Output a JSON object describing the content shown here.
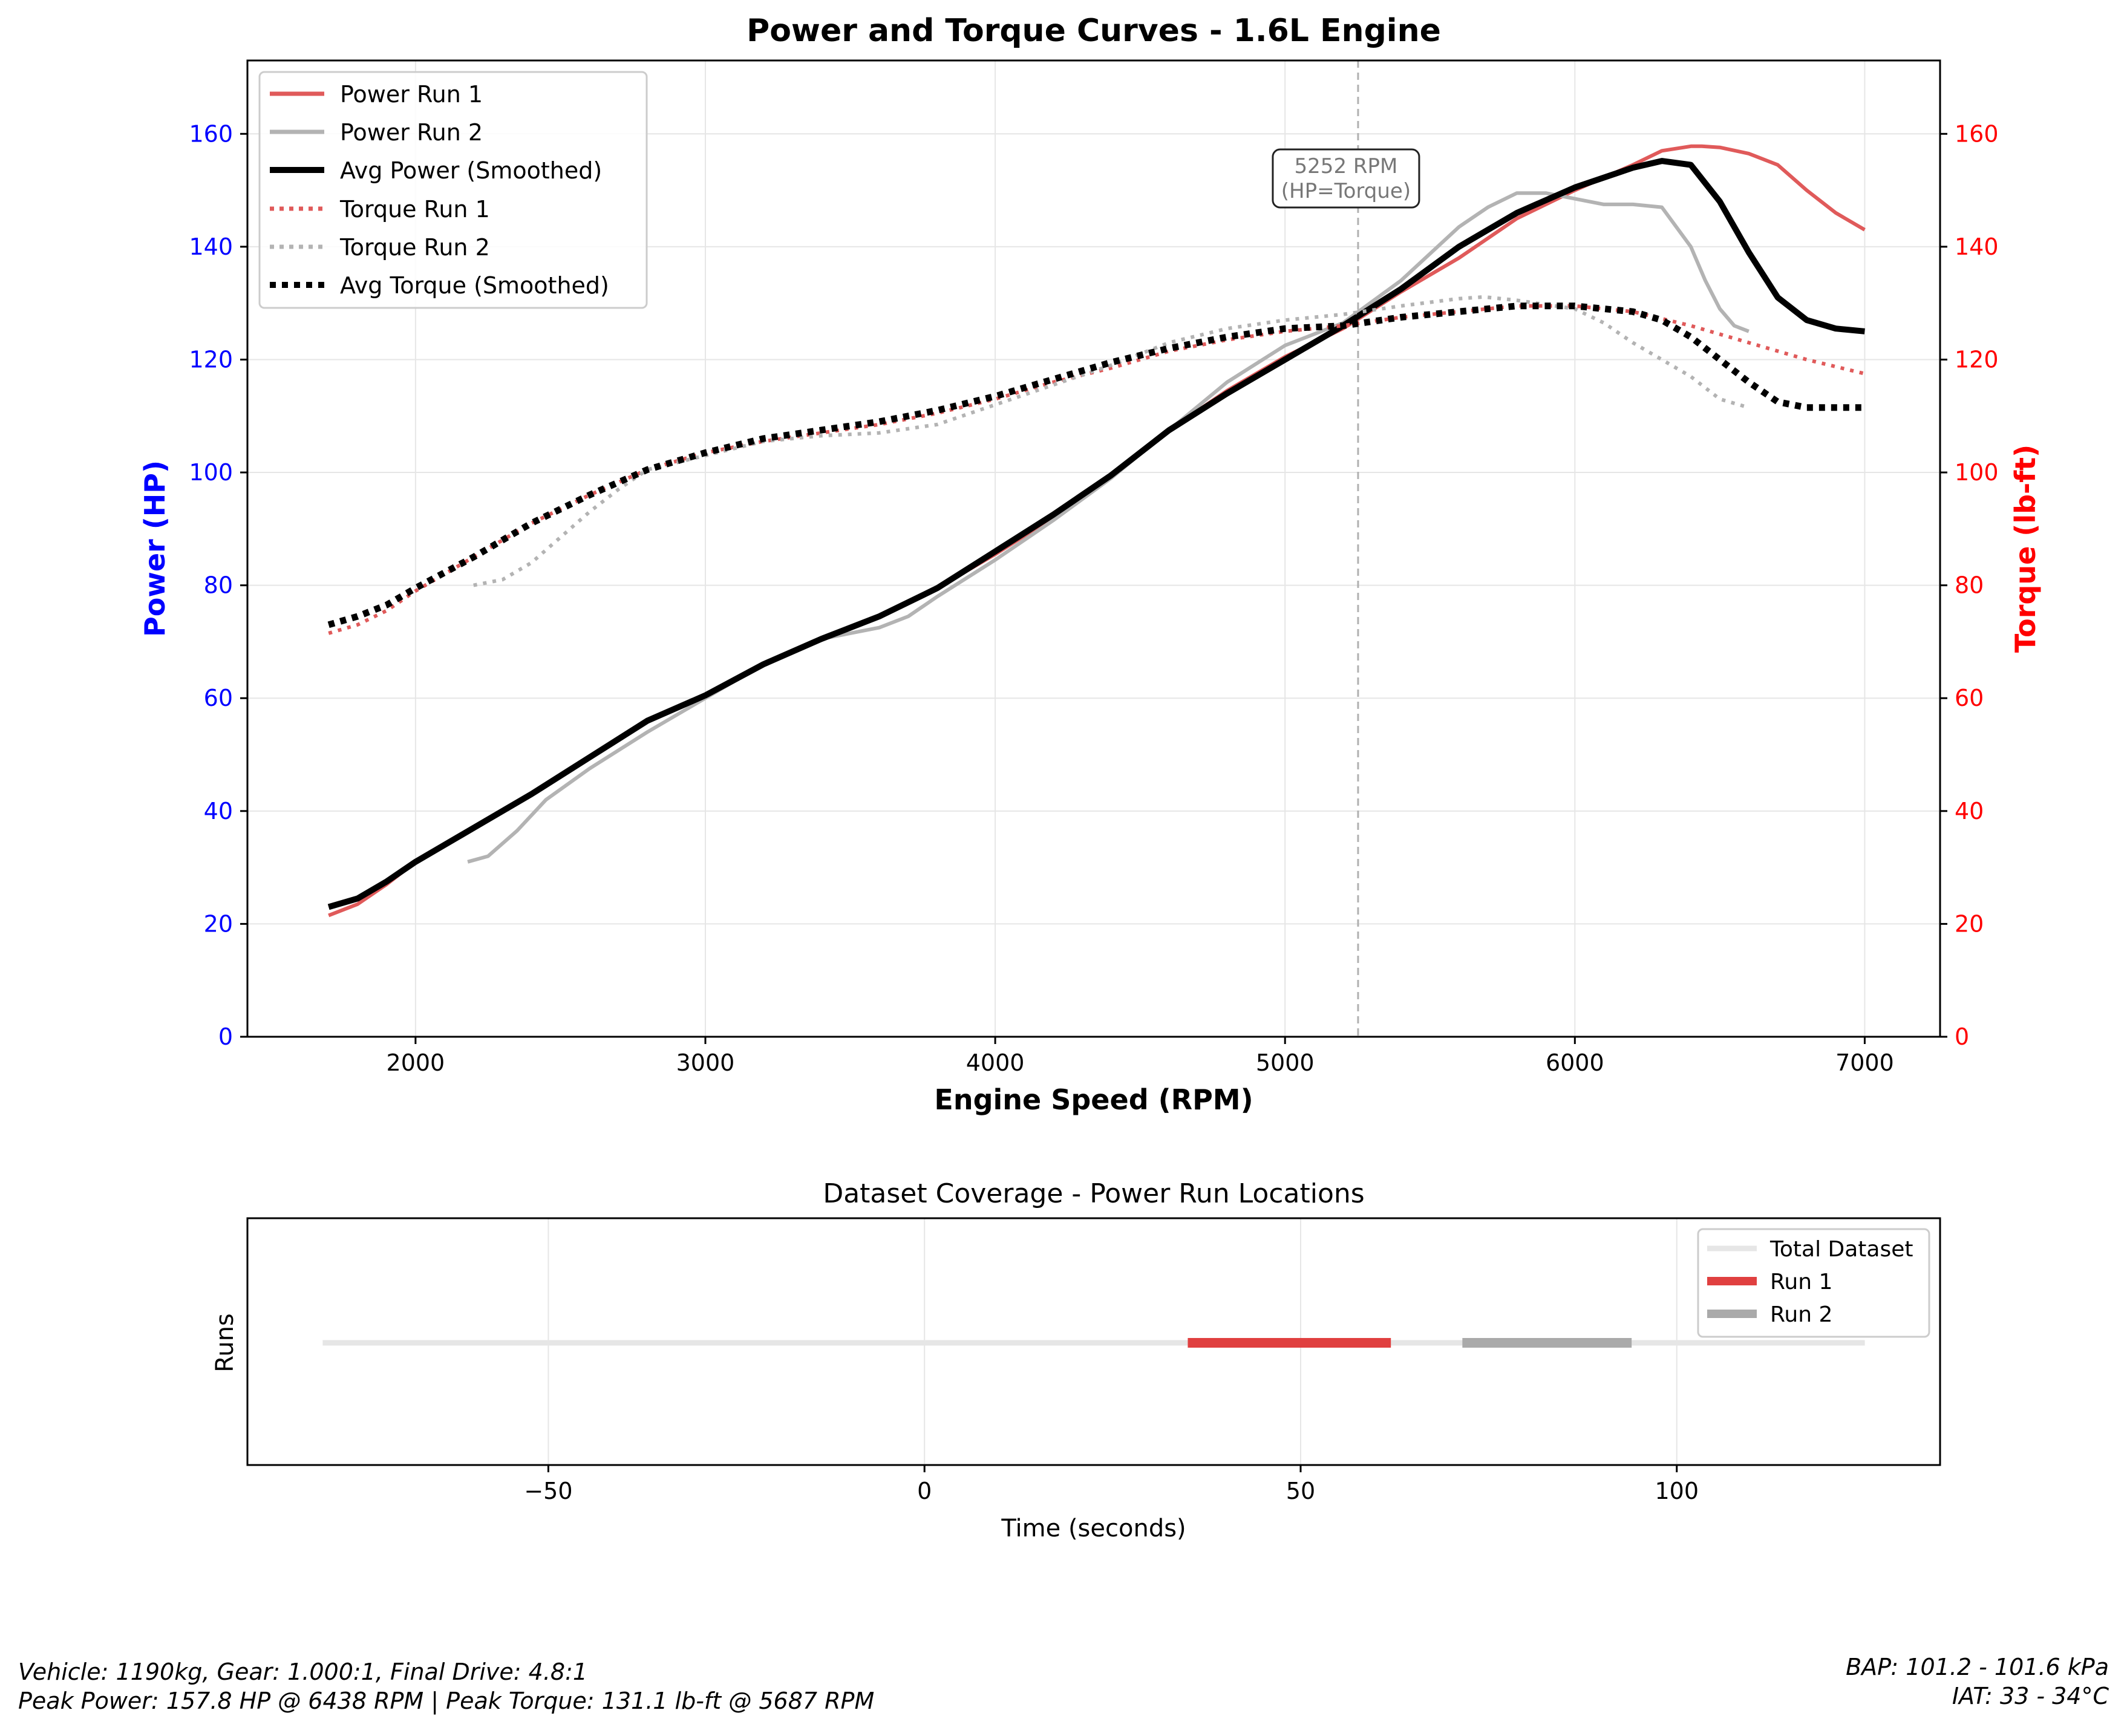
{
  "chart_data": [
    {
      "type": "line",
      "title": "Power and Torque Curves - 1.6L Engine",
      "xlabel": "Engine Speed (RPM)",
      "ylabel": "Power (HP)",
      "ylabel_right": "Torque (lb-ft)",
      "xlim": [
        1420,
        7260
      ],
      "ylim": [
        0,
        173
      ],
      "ylim_right": [
        0,
        173
      ],
      "xticks": [
        2000,
        3000,
        4000,
        5000,
        6000,
        7000
      ],
      "yticks": [
        0,
        20,
        40,
        60,
        80,
        100,
        120,
        140,
        160
      ],
      "grid": true,
      "legend_position": "top-left",
      "colors": {
        "power_run1": "#e05a5a",
        "power_run2": "#b3b3b3",
        "avg": "#000000",
        "left_axis": "#0000ff",
        "right_axis": "#ff0000"
      },
      "annotation": {
        "x": 5252,
        "text_line1": "5252 RPM",
        "text_line2": "(HP=Torque)"
      },
      "series": [
        {
          "name": "Power Run 1",
          "axis": "left",
          "style": "solid",
          "x": [
            1700,
            1800,
            1900,
            2000,
            2200,
            2400,
            2600,
            2800,
            3000,
            3200,
            3400,
            3600,
            3800,
            4000,
            4200,
            4400,
            4600,
            4800,
            5000,
            5200,
            5400,
            5600,
            5800,
            6000,
            6200,
            6300,
            6400,
            6438,
            6500,
            6600,
            6700,
            6800,
            6900,
            7000
          ],
          "y": [
            21.5,
            23.5,
            27,
            31,
            37,
            43,
            49.5,
            56,
            60.5,
            66,
            70.5,
            74.5,
            79.5,
            85.5,
            92,
            99.5,
            107.5,
            114.5,
            120.5,
            125.5,
            132,
            138,
            145,
            150,
            154.5,
            157,
            157.8,
            157.8,
            157.6,
            156.5,
            154.5,
            150,
            146,
            143
          ]
        },
        {
          "name": "Power Run 2",
          "axis": "left",
          "style": "solid",
          "x": [
            2180,
            2250,
            2350,
            2450,
            2600,
            2800,
            3000,
            3200,
            3400,
            3600,
            3700,
            3800,
            4000,
            4200,
            4400,
            4600,
            4800,
            5000,
            5200,
            5400,
            5600,
            5700,
            5800,
            5900,
            6000,
            6100,
            6200,
            6300,
            6400,
            6450,
            6500,
            6550,
            6600
          ],
          "y": [
            31,
            32,
            36.5,
            42,
            47.5,
            54,
            60,
            66,
            70.5,
            72.5,
            74.5,
            78,
            84.5,
            91.5,
            99,
            107.5,
            116,
            122.5,
            126.5,
            134,
            143.5,
            147,
            149.5,
            149.5,
            148.5,
            147.5,
            147.5,
            147,
            140,
            134,
            129,
            126,
            125
          ]
        },
        {
          "name": "Avg Power (Smoothed)",
          "axis": "left",
          "style": "solid",
          "x": [
            1700,
            1800,
            1900,
            2000,
            2200,
            2400,
            2600,
            2800,
            3000,
            3200,
            3400,
            3600,
            3800,
            4000,
            4200,
            4400,
            4600,
            4800,
            5000,
            5200,
            5400,
            5600,
            5800,
            6000,
            6200,
            6300,
            6400,
            6500,
            6600,
            6700,
            6800,
            6900,
            7000
          ],
          "y": [
            23,
            24.5,
            27.5,
            31,
            37,
            43,
            49.5,
            56,
            60.5,
            66,
            70.5,
            74.5,
            79.5,
            86,
            92.5,
            99.5,
            107.5,
            114,
            120,
            126,
            132.5,
            140,
            146,
            150.5,
            154,
            155.2,
            154.5,
            148,
            139,
            131,
            127,
            125.5,
            125
          ]
        },
        {
          "name": "Torque Run 1",
          "axis": "right",
          "style": "dotted",
          "x": [
            1700,
            1800,
            1900,
            2000,
            2200,
            2400,
            2600,
            2800,
            3000,
            3200,
            3400,
            3600,
            3800,
            4000,
            4200,
            4400,
            4600,
            4800,
            5000,
            5200,
            5400,
            5600,
            5800,
            6000,
            6200,
            6400,
            6600,
            6800,
            7000
          ],
          "y": [
            71.5,
            73,
            75.5,
            79,
            85,
            91,
            96,
            100.5,
            103.5,
            105.5,
            107,
            108.5,
            110.5,
            113,
            116,
            118.5,
            121.5,
            123.5,
            125,
            126,
            127.5,
            128.5,
            129.5,
            129.5,
            128.5,
            126,
            123,
            120,
            117.5
          ]
        },
        {
          "name": "Torque Run 2",
          "axis": "right",
          "style": "dotted",
          "x": [
            2200,
            2300,
            2400,
            2500,
            2600,
            2700,
            2800,
            3000,
            3200,
            3400,
            3600,
            3800,
            4000,
            4200,
            4400,
            4600,
            4800,
            5000,
            5200,
            5400,
            5600,
            5687,
            5800,
            6000,
            6100,
            6200,
            6300,
            6400,
            6500,
            6600
          ],
          "y": [
            80,
            81,
            84,
            88.5,
            93,
            97,
            100.5,
            103,
            105.5,
            106.5,
            107,
            108.5,
            112,
            115.5,
            119,
            123,
            125.5,
            127,
            128,
            129.5,
            130.8,
            131.1,
            130.5,
            129,
            126.5,
            123,
            120,
            117,
            113,
            111.5
          ]
        },
        {
          "name": "Avg Torque (Smoothed)",
          "axis": "right",
          "style": "dotted",
          "x": [
            1700,
            1800,
            1900,
            2000,
            2200,
            2400,
            2600,
            2800,
            3000,
            3200,
            3400,
            3600,
            3800,
            4000,
            4200,
            4400,
            4600,
            4800,
            5000,
            5200,
            5400,
            5600,
            5800,
            6000,
            6200,
            6300,
            6400,
            6500,
            6600,
            6700,
            6800,
            7000
          ],
          "y": [
            73,
            74.5,
            76.5,
            79.5,
            85,
            91,
            96,
            100.5,
            103.5,
            106,
            107.5,
            109,
            111,
            113.5,
            116.5,
            119.5,
            122,
            124,
            125.5,
            126,
            127.5,
            128.5,
            129.5,
            129.5,
            128.5,
            127,
            124,
            120,
            116,
            112.5,
            111.5,
            111.5
          ]
        }
      ]
    },
    {
      "type": "line",
      "title": "Dataset Coverage - Power Run Locations",
      "xlabel": "Time (seconds)",
      "ylabel": "Runs",
      "xlim": [
        -90,
        135
      ],
      "xticks": [
        -50,
        0,
        50,
        100
      ],
      "xtick_labels": [
        "−50",
        "0",
        "50",
        "100"
      ],
      "grid": true,
      "legend_position": "top-right",
      "series": [
        {
          "name": "Total Dataset",
          "x": [
            -80,
            125
          ],
          "color": "#e6e6e6"
        },
        {
          "name": "Run 1",
          "x": [
            35,
            62
          ],
          "color": "#e04040"
        },
        {
          "name": "Run 2",
          "x": [
            71.5,
            94
          ],
          "color": "#aaaaaa"
        }
      ]
    }
  ],
  "footer": {
    "left_line1": "Vehicle: 1190kg, Gear: 1.000:1, Final Drive: 4.8:1",
    "left_line2": "Peak Power: 157.8 HP @ 6438 RPM | Peak Torque: 131.1 lb-ft @ 5687 RPM",
    "right_line1": "BAP: 101.2 - 101.6 kPa",
    "right_line2": "IAT: 33 - 34°C"
  }
}
